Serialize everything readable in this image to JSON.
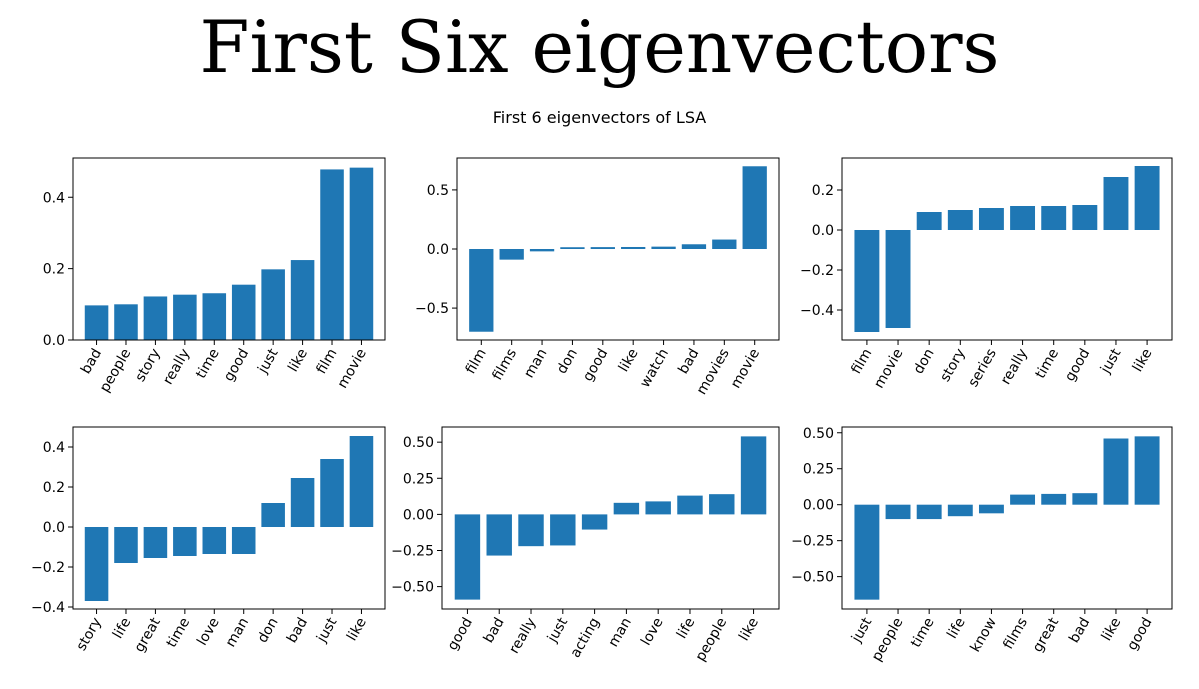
{
  "page": {
    "title": "First Six eigenvectors",
    "suptitle": "First 6 eigenvectors of LSA"
  },
  "chart_data": [
    {
      "type": "bar",
      "categories": [
        "bad",
        "people",
        "story",
        "really",
        "time",
        "good",
        "just",
        "like",
        "film",
        "movie"
      ],
      "values": [
        0.097,
        0.1,
        0.122,
        0.127,
        0.131,
        0.155,
        0.198,
        0.224,
        0.478,
        0.483
      ],
      "ylim": [
        0,
        0.51
      ],
      "yticks": [
        0.0,
        0.2,
        0.4
      ],
      "ytick_labels": [
        "0.0",
        "0.2",
        "0.4"
      ],
      "color": "#1f77b4"
    },
    {
      "type": "bar",
      "categories": [
        "film",
        "films",
        "man",
        "don",
        "good",
        "like",
        "watch",
        "bad",
        "movies",
        "movie"
      ],
      "values": [
        -0.7,
        -0.09,
        -0.02,
        0.015,
        0.016,
        0.017,
        0.02,
        0.04,
        0.08,
        0.7
      ],
      "ylim": [
        -0.77,
        0.77
      ],
      "yticks": [
        -0.5,
        0.0,
        0.5
      ],
      "ytick_labels": [
        "−0.5",
        "0.0",
        "0.5"
      ],
      "color": "#1f77b4"
    },
    {
      "type": "bar",
      "categories": [
        "film",
        "movie",
        "don",
        "story",
        "series",
        "really",
        "time",
        "good",
        "just",
        "like"
      ],
      "values": [
        -0.51,
        -0.49,
        0.09,
        0.1,
        0.11,
        0.12,
        0.12,
        0.125,
        0.265,
        0.32
      ],
      "ylim": [
        -0.55,
        0.36
      ],
      "yticks": [
        -0.4,
        -0.2,
        0.0,
        0.2
      ],
      "ytick_labels": [
        "−0.4",
        "−0.2",
        "0.0",
        "0.2"
      ],
      "color": "#1f77b4"
    },
    {
      "type": "bar",
      "categories": [
        "story",
        "life",
        "great",
        "time",
        "love",
        "man",
        "don",
        "bad",
        "just",
        "like"
      ],
      "values": [
        -0.37,
        -0.18,
        -0.155,
        -0.145,
        -0.135,
        -0.135,
        0.12,
        0.245,
        0.34,
        0.455
      ],
      "ylim": [
        -0.41,
        0.5
      ],
      "yticks": [
        -0.4,
        -0.2,
        0.0,
        0.2,
        0.4
      ],
      "ytick_labels": [
        "−0.4",
        "−0.2",
        "0.0",
        "0.2",
        "0.4"
      ],
      "color": "#1f77b4"
    },
    {
      "type": "bar",
      "categories": [
        "good",
        "bad",
        "really",
        "just",
        "acting",
        "man",
        "love",
        "life",
        "people",
        "like"
      ],
      "values": [
        -0.59,
        -0.285,
        -0.22,
        -0.215,
        -0.105,
        0.08,
        0.09,
        0.13,
        0.14,
        0.54
      ],
      "ylim": [
        -0.655,
        0.605
      ],
      "yticks": [
        -0.5,
        -0.25,
        0.0,
        0.25,
        0.5
      ],
      "ytick_labels": [
        "−0.50",
        "−0.25",
        "0.00",
        "0.25",
        "0.50"
      ],
      "color": "#1f77b4"
    },
    {
      "type": "bar",
      "categories": [
        "just",
        "people",
        "time",
        "life",
        "know",
        "films",
        "great",
        "bad",
        "like",
        "good"
      ],
      "values": [
        -0.66,
        -0.1,
        -0.1,
        -0.08,
        -0.06,
        0.07,
        0.075,
        0.08,
        0.46,
        0.475
      ],
      "ylim": [
        -0.725,
        0.54
      ],
      "yticks": [
        -0.5,
        -0.25,
        0.0,
        0.25,
        0.5
      ],
      "ytick_labels": [
        "−0.50",
        "−0.25",
        "0.00",
        "0.25",
        "0.50"
      ],
      "color": "#1f77b4"
    }
  ]
}
